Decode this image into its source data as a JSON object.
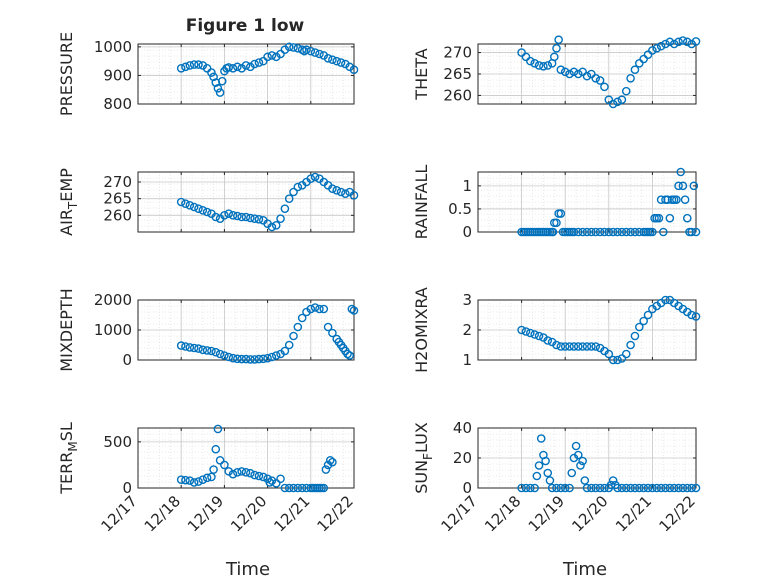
{
  "figure_title": "Figure 1 low",
  "colors": {
    "marker": "#0072BD",
    "axis": "#262626",
    "grid": "#c8c8c8",
    "minor_grid": "#e3e3e3"
  },
  "x_ticks": [
    "12/17",
    "12/18",
    "12/19",
    "12/20",
    "12/21",
    "12/22"
  ],
  "x_axis_label": "Time",
  "chart_data": [
    {
      "type": "scatter",
      "ylabel": "PRESSURE",
      "ylim": [
        800,
        1010
      ],
      "yticks": [
        800,
        900,
        1000
      ],
      "yticklabels": [
        "800",
        "900",
        "1000"
      ],
      "x": [
        1.0,
        1.1,
        1.2,
        1.3,
        1.4,
        1.5,
        1.6,
        1.7,
        1.75,
        1.8,
        1.85,
        1.9,
        1.95,
        2.0,
        2.05,
        2.1,
        2.2,
        2.3,
        2.4,
        2.5,
        2.6,
        2.7,
        2.8,
        2.9,
        3.0,
        3.1,
        3.2,
        3.3,
        3.4,
        3.5,
        3.6,
        3.7,
        3.8,
        3.85,
        3.9,
        4.0,
        4.1,
        4.2,
        4.3,
        4.4,
        4.5,
        4.6,
        4.7,
        4.8,
        4.9,
        5.0,
        5.05,
        5.1,
        5.15,
        5.2,
        5.25,
        5.3
      ],
      "y": [
        925,
        930,
        935,
        938,
        938,
        935,
        925,
        910,
        895,
        875,
        855,
        840,
        880,
        915,
        925,
        928,
        925,
        930,
        925,
        935,
        930,
        940,
        945,
        950,
        965,
        970,
        965,
        975,
        990,
        1000,
        998,
        995,
        990,
        985,
        990,
        985,
        980,
        975,
        970,
        960,
        955,
        950,
        945,
        940,
        930,
        920,
        915,
        910,
        905,
        910,
        915,
        910
      ],
      "xlim": [
        0,
        5.2
      ]
    },
    {
      "type": "scatter",
      "ylabel": "THETA",
      "ylim": [
        258,
        272
      ],
      "yticks": [
        260,
        265,
        270
      ],
      "yticklabels": [
        "260",
        "265",
        "270"
      ],
      "x": [
        1.0,
        1.1,
        1.2,
        1.3,
        1.4,
        1.5,
        1.6,
        1.7,
        1.75,
        1.8,
        1.85,
        1.9,
        2.0,
        2.1,
        2.2,
        2.3,
        2.4,
        2.5,
        2.6,
        2.7,
        2.8,
        2.9,
        3.0,
        3.1,
        3.2,
        3.3,
        3.4,
        3.5,
        3.6,
        3.7,
        3.8,
        3.9,
        4.0,
        4.1,
        4.2,
        4.3,
        4.4,
        4.5,
        4.6,
        4.7,
        4.8,
        4.9,
        5.0,
        5.1,
        5.2
      ],
      "y": [
        270,
        269,
        268,
        267.5,
        267,
        266.8,
        267,
        267.5,
        269,
        271,
        273,
        266,
        265.5,
        265,
        265.5,
        265,
        265.5,
        264.5,
        265,
        264,
        263.5,
        262,
        259,
        258,
        258.5,
        259,
        261,
        264,
        266,
        267.5,
        268.5,
        269.5,
        270.5,
        271,
        271.5,
        272,
        272.5,
        272,
        272.5,
        272.8,
        272.5,
        272,
        272.6,
        272,
        271.8
      ],
      "xlim": [
        0,
        5.2
      ]
    },
    {
      "type": "scatter",
      "ylabel": "AIR_TEMP",
      "ylim": [
        255,
        273
      ],
      "yticks": [
        260,
        265,
        270
      ],
      "yticklabels": [
        "260",
        "265",
        "270"
      ],
      "x": [
        1.0,
        1.1,
        1.2,
        1.3,
        1.4,
        1.5,
        1.6,
        1.7,
        1.8,
        1.9,
        2.0,
        2.1,
        2.2,
        2.3,
        2.4,
        2.5,
        2.6,
        2.7,
        2.8,
        2.9,
        3.0,
        3.1,
        3.2,
        3.3,
        3.4,
        3.5,
        3.6,
        3.7,
        3.8,
        3.9,
        4.0,
        4.1,
        4.2,
        4.3,
        4.4,
        4.5,
        4.6,
        4.7,
        4.8,
        4.9,
        5.0,
        5.1,
        5.2
      ],
      "y": [
        264,
        263.5,
        263,
        262.5,
        262,
        261.5,
        261,
        260.5,
        259.5,
        259,
        260,
        260.5,
        260,
        259.8,
        259.5,
        259.5,
        259.2,
        259,
        258.8,
        258.5,
        257.5,
        256.5,
        257,
        259,
        262,
        265,
        267,
        268.5,
        269,
        270,
        271,
        271.5,
        271,
        270,
        269,
        268,
        267.5,
        267,
        266.5,
        267,
        266,
        265.5,
        265
      ],
      "xlim": [
        0,
        5.2
      ]
    },
    {
      "type": "scatter",
      "ylabel": "RAINFALL",
      "ylim": [
        0,
        1.3
      ],
      "yticks": [
        0,
        0.5,
        1
      ],
      "yticklabels": [
        "0",
        "0.5",
        "1"
      ],
      "x": [
        1.0,
        1.05,
        1.1,
        1.15,
        1.2,
        1.25,
        1.3,
        1.35,
        1.4,
        1.45,
        1.5,
        1.55,
        1.6,
        1.65,
        1.7,
        1.72,
        1.75,
        1.8,
        1.85,
        1.9,
        1.95,
        2.0,
        2.05,
        2.1,
        2.15,
        2.2,
        2.3,
        2.4,
        2.5,
        2.6,
        2.7,
        2.8,
        2.9,
        3.0,
        3.1,
        3.2,
        3.3,
        3.4,
        3.5,
        3.6,
        3.7,
        3.8,
        3.85,
        3.9,
        3.95,
        4.0,
        4.05,
        4.1,
        4.15,
        4.2,
        4.25,
        4.3,
        4.35,
        4.4,
        4.45,
        4.5,
        4.55,
        4.6,
        4.65,
        4.7,
        4.75,
        4.8,
        4.85,
        4.9,
        4.95,
        5.0,
        5.05,
        5.1,
        5.15
      ],
      "y": [
        0,
        0,
        0,
        0,
        0,
        0,
        0,
        0,
        0,
        0,
        0,
        0,
        0,
        0,
        0,
        0,
        0.2,
        0.2,
        0.4,
        0.4,
        0,
        0,
        0,
        0,
        0,
        0,
        0,
        0,
        0,
        0,
        0,
        0,
        0,
        0,
        0,
        0,
        0,
        0,
        0,
        0,
        0,
        0,
        0,
        0,
        0,
        0,
        0.3,
        0.3,
        0.3,
        0.7,
        0,
        0.7,
        0.7,
        0.3,
        0.7,
        0.7,
        0.7,
        1.0,
        1.3,
        1.0,
        0.7,
        0.3,
        0,
        0,
        1.0,
        0,
        0.7,
        0.6,
        0.6
      ],
      "xlim": [
        0,
        5.2
      ]
    },
    {
      "type": "scatter",
      "ylabel": "MIXDEPTH",
      "ylim": [
        0,
        2000
      ],
      "yticks": [
        0,
        1000,
        2000
      ],
      "yticklabels": [
        "0",
        "1000",
        "2000"
      ],
      "x": [
        1.0,
        1.1,
        1.2,
        1.3,
        1.4,
        1.5,
        1.6,
        1.7,
        1.8,
        1.9,
        2.0,
        2.1,
        2.2,
        2.3,
        2.4,
        2.5,
        2.6,
        2.7,
        2.8,
        2.9,
        3.0,
        3.1,
        3.2,
        3.3,
        3.4,
        3.5,
        3.6,
        3.7,
        3.8,
        3.9,
        4.0,
        4.1,
        4.2,
        4.3,
        4.4,
        4.5,
        4.6,
        4.65,
        4.7,
        4.75,
        4.8,
        4.85,
        4.9,
        4.95,
        5.0,
        5.05,
        5.1,
        5.15,
        5.2
      ],
      "y": [
        480,
        450,
        420,
        400,
        380,
        340,
        320,
        300,
        260,
        200,
        150,
        100,
        60,
        40,
        30,
        30,
        20,
        20,
        30,
        40,
        60,
        100,
        150,
        200,
        300,
        500,
        800,
        1100,
        1400,
        1600,
        1700,
        1750,
        1700,
        1700,
        1100,
        900,
        700,
        600,
        500,
        400,
        300,
        200,
        150,
        1700,
        1650,
        1100,
        600,
        500,
        200
      ],
      "xlim": [
        0,
        5.2
      ]
    },
    {
      "type": "scatter",
      "ylabel": "H2OMIXRA",
      "ylim": [
        1,
        3
      ],
      "yticks": [
        1,
        2,
        3
      ],
      "yticklabels": [
        "1",
        "2",
        "3"
      ],
      "x": [
        1.0,
        1.1,
        1.2,
        1.3,
        1.4,
        1.5,
        1.6,
        1.7,
        1.8,
        1.9,
        2.0,
        2.1,
        2.2,
        2.3,
        2.4,
        2.5,
        2.6,
        2.7,
        2.8,
        2.9,
        3.0,
        3.1,
        3.2,
        3.3,
        3.4,
        3.5,
        3.6,
        3.7,
        3.8,
        3.9,
        4.0,
        4.1,
        4.2,
        4.3,
        4.4,
        4.5,
        4.6,
        4.7,
        4.8,
        4.9,
        5.0,
        5.1,
        5.2
      ],
      "y": [
        2.0,
        1.95,
        1.9,
        1.85,
        1.8,
        1.75,
        1.65,
        1.6,
        1.5,
        1.45,
        1.45,
        1.45,
        1.45,
        1.45,
        1.45,
        1.45,
        1.45,
        1.45,
        1.4,
        1.3,
        1.2,
        1.0,
        1.0,
        1.05,
        1.2,
        1.5,
        1.8,
        2.1,
        2.3,
        2.5,
        2.7,
        2.8,
        2.9,
        3.0,
        3.0,
        2.9,
        2.8,
        2.7,
        2.6,
        2.5,
        2.45,
        2.4,
        2.35
      ],
      "xlim": [
        0,
        5.2
      ]
    },
    {
      "type": "scatter",
      "ylabel": "TERR_MSL",
      "ylim": [
        0,
        650
      ],
      "yticks": [
        0,
        500
      ],
      "yticklabels": [
        "0",
        "500"
      ],
      "x": [
        1.0,
        1.1,
        1.2,
        1.3,
        1.4,
        1.5,
        1.6,
        1.7,
        1.75,
        1.8,
        1.85,
        1.9,
        2.0,
        2.1,
        2.2,
        2.3,
        2.4,
        2.5,
        2.6,
        2.7,
        2.8,
        2.9,
        3.0,
        3.05,
        3.1,
        3.2,
        3.3,
        3.4,
        3.5,
        3.6,
        3.7,
        3.8,
        3.9,
        4.0,
        4.05,
        4.1,
        4.15,
        4.2,
        4.25,
        4.3,
        4.35,
        4.4,
        4.45,
        4.5
      ],
      "y": [
        90,
        85,
        80,
        60,
        70,
        90,
        110,
        120,
        200,
        420,
        640,
        300,
        250,
        180,
        150,
        170,
        180,
        170,
        160,
        140,
        130,
        120,
        100,
        60,
        80,
        50,
        100,
        0,
        0,
        0,
        0,
        0,
        0,
        0,
        0,
        0,
        0,
        0,
        0,
        0,
        200,
        250,
        300,
        280
      ],
      "xlim": [
        0,
        4.55
      ]
    },
    {
      "type": "scatter",
      "ylabel": "SUN_FLUX",
      "ylim": [
        0,
        40
      ],
      "yticks": [
        0,
        20,
        40
      ],
      "yticklabels": [
        "0",
        "20",
        "40"
      ],
      "x": [
        1.0,
        1.1,
        1.2,
        1.3,
        1.35,
        1.4,
        1.45,
        1.5,
        1.55,
        1.6,
        1.65,
        1.7,
        1.8,
        1.9,
        2.0,
        2.1,
        2.15,
        2.2,
        2.25,
        2.3,
        2.35,
        2.4,
        2.45,
        2.5,
        2.6,
        2.7,
        2.8,
        2.9,
        3.0,
        3.05,
        3.1,
        3.15,
        3.2,
        3.3,
        3.4,
        3.5,
        3.6,
        3.7,
        3.8,
        3.9,
        4.0,
        4.1,
        4.2,
        4.3,
        4.4,
        4.5,
        4.6,
        4.7,
        4.8,
        4.9,
        5.0,
        5.1,
        5.2
      ],
      "y": [
        0,
        0,
        0,
        0,
        8,
        15,
        33,
        22,
        18,
        10,
        5,
        0,
        0,
        0,
        0,
        0,
        10,
        20,
        28,
        22,
        15,
        18,
        5,
        0,
        0,
        0,
        0,
        0,
        0,
        2,
        5,
        2,
        0,
        0,
        0,
        0,
        0,
        0,
        0,
        0,
        0,
        0,
        0,
        0,
        0,
        0,
        0,
        0,
        0,
        0,
        0,
        0,
        0
      ],
      "xlim": [
        0,
        5.2
      ]
    }
  ]
}
